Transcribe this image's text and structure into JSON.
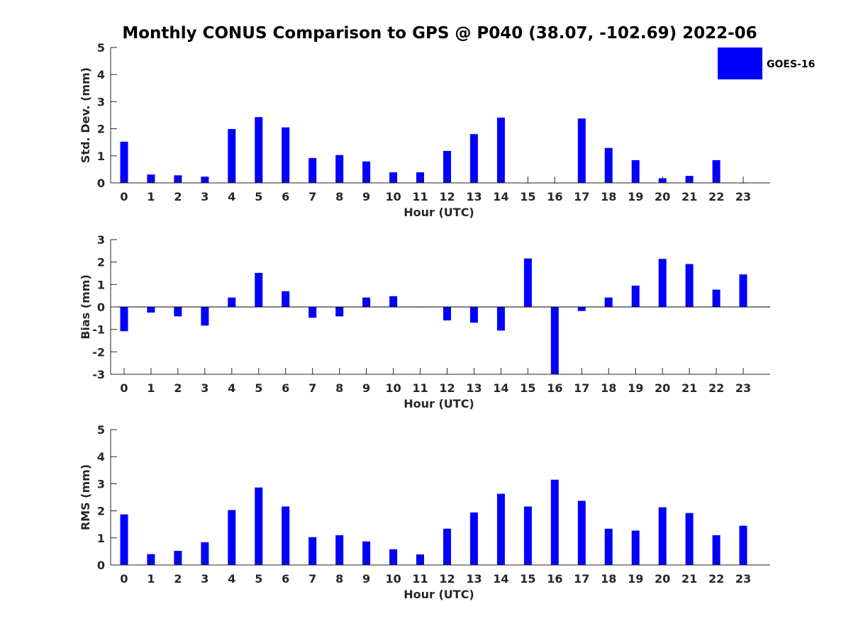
{
  "title": "Monthly CONUS Comparison to GPS @ P040 (38.07, -102.69) 2022-06",
  "colors": {
    "bar": "#0000ff",
    "axis": "#262626"
  },
  "legend": {
    "label": "GOES-16",
    "position": "top-right"
  },
  "chart_data": [
    {
      "type": "bar",
      "name": "std-dev",
      "categories": [
        "0",
        "1",
        "2",
        "3",
        "4",
        "5",
        "6",
        "7",
        "8",
        "9",
        "10",
        "11",
        "12",
        "13",
        "14",
        "15",
        "16",
        "17",
        "18",
        "19",
        "20",
        "21",
        "22",
        "23"
      ],
      "values": [
        1.52,
        0.31,
        0.28,
        0.23,
        1.99,
        2.43,
        2.05,
        0.92,
        1.03,
        0.79,
        0.39,
        0.39,
        1.18,
        1.8,
        2.41,
        0,
        0,
        2.38,
        1.29,
        0.84,
        0.17,
        0.26,
        0.84,
        0
      ],
      "series_name": "GOES-16",
      "xlabel": "Hour (UTC)",
      "ylabel": "Std. Dev. (mm)",
      "ylim": [
        0,
        5
      ],
      "yticks": [
        "0",
        "1",
        "2",
        "3",
        "4",
        "5"
      ],
      "grid": false
    },
    {
      "type": "bar",
      "name": "bias",
      "categories": [
        "0",
        "1",
        "2",
        "3",
        "4",
        "5",
        "6",
        "7",
        "8",
        "9",
        "10",
        "11",
        "12",
        "13",
        "14",
        "15",
        "16",
        "17",
        "18",
        "19",
        "20",
        "21",
        "22",
        "23"
      ],
      "values": [
        -1.08,
        -0.25,
        -0.42,
        -0.83,
        0.42,
        1.52,
        0.7,
        -0.48,
        -0.42,
        0.42,
        0.48,
        -0.02,
        -0.6,
        -0.7,
        -1.05,
        2.16,
        -3.0,
        -0.18,
        0.42,
        0.95,
        2.14,
        1.91,
        0.77,
        1.45
      ],
      "series_name": "GOES-16",
      "xlabel": "Hour (UTC)",
      "ylabel": "Bias (mm)",
      "ylim": [
        -3,
        3
      ],
      "yticks": [
        "-3",
        "-2",
        "-1",
        "0",
        "1",
        "2",
        "3"
      ],
      "grid": false
    },
    {
      "type": "bar",
      "name": "rms",
      "categories": [
        "0",
        "1",
        "2",
        "3",
        "4",
        "5",
        "6",
        "7",
        "8",
        "9",
        "10",
        "11",
        "12",
        "13",
        "14",
        "15",
        "16",
        "17",
        "18",
        "19",
        "20",
        "21",
        "22",
        "23"
      ],
      "values": [
        1.87,
        0.4,
        0.52,
        0.84,
        2.03,
        2.86,
        2.16,
        1.03,
        1.1,
        0.87,
        0.58,
        0.39,
        1.34,
        1.94,
        2.63,
        2.16,
        3.15,
        2.37,
        1.34,
        1.27,
        2.13,
        1.92,
        1.1,
        1.45
      ],
      "series_name": "GOES-16",
      "xlabel": "Hour (UTC)",
      "ylabel": "RMS (mm)",
      "ylim": [
        0,
        5
      ],
      "yticks": [
        "0",
        "1",
        "2",
        "3",
        "4",
        "5"
      ],
      "grid": false
    }
  ]
}
